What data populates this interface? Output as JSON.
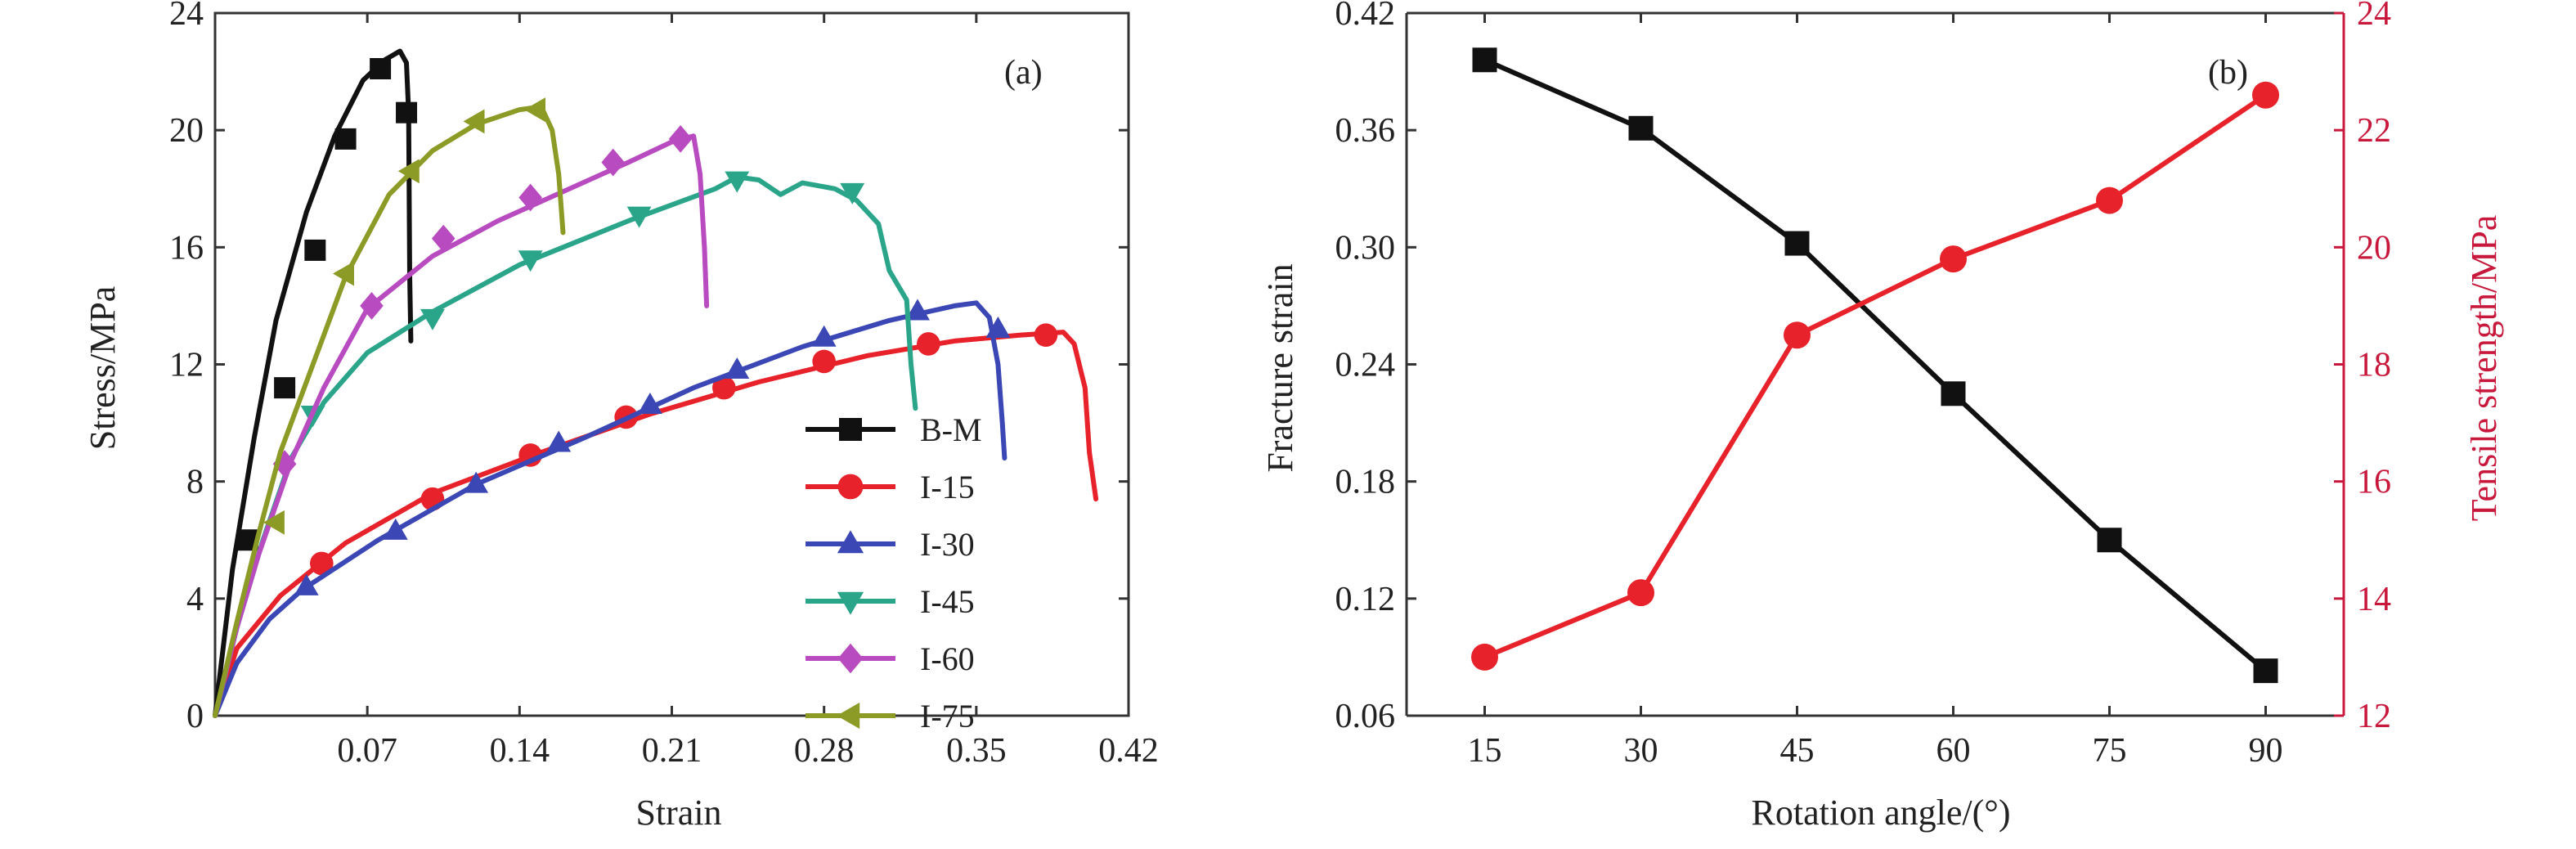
{
  "chart_data": [
    {
      "type": "line",
      "panel_label": "(a)",
      "xlabel": "Strain",
      "ylabel": "Stress/MPa",
      "xlim": [
        0,
        0.42
      ],
      "ylim": [
        0,
        24
      ],
      "xticks": [
        "0.07",
        "0.14",
        "0.21",
        "0.28",
        "0.35",
        "0.42"
      ],
      "xtick_values": [
        0.07,
        0.14,
        0.21,
        0.28,
        0.35,
        0.42
      ],
      "yticks": [
        "0",
        "4",
        "8",
        "12",
        "16",
        "20",
        "24"
      ],
      "ytick_values": [
        0,
        4,
        8,
        12,
        16,
        20,
        24
      ],
      "legend_position": "lower-right",
      "series": [
        {
          "name": "B-M",
          "color": "#111111",
          "marker": "square",
          "curve": [
            [
              0,
              0
            ],
            [
              0.008,
              5.0
            ],
            [
              0.018,
              9.5
            ],
            [
              0.028,
              13.5
            ],
            [
              0.042,
              17.2
            ],
            [
              0.055,
              19.8
            ],
            [
              0.068,
              21.7
            ],
            [
              0.078,
              22.4
            ],
            [
              0.085,
              22.7
            ],
            [
              0.088,
              22.3
            ],
            [
              0.089,
              20.6
            ],
            [
              0.0895,
              15.0
            ],
            [
              0.09,
              12.8
            ]
          ],
          "markers": [
            [
              0.015,
              6.0
            ],
            [
              0.032,
              11.2
            ],
            [
              0.046,
              15.9
            ],
            [
              0.06,
              19.7
            ],
            [
              0.076,
              22.1
            ],
            [
              0.088,
              20.6
            ]
          ]
        },
        {
          "name": "I-15",
          "color": "#e8222a",
          "marker": "circle",
          "curve": [
            [
              0,
              0
            ],
            [
              0.01,
              2.3
            ],
            [
              0.03,
              4.1
            ],
            [
              0.06,
              5.9
            ],
            [
              0.1,
              7.6
            ],
            [
              0.15,
              9.0
            ],
            [
              0.2,
              10.3
            ],
            [
              0.25,
              11.4
            ],
            [
              0.3,
              12.3
            ],
            [
              0.34,
              12.8
            ],
            [
              0.37,
              13.0
            ],
            [
              0.39,
              13.1
            ],
            [
              0.395,
              12.7
            ],
            [
              0.4,
              11.2
            ],
            [
              0.402,
              9.0
            ],
            [
              0.405,
              7.4
            ]
          ],
          "markers": [
            [
              0.049,
              5.2
            ],
            [
              0.1,
              7.4
            ],
            [
              0.145,
              8.9
            ],
            [
              0.189,
              10.2
            ],
            [
              0.234,
              11.2
            ],
            [
              0.28,
              12.1
            ],
            [
              0.328,
              12.7
            ],
            [
              0.382,
              13.0
            ]
          ]
        },
        {
          "name": "I-30",
          "color": "#3a47b5",
          "marker": "triangle-up",
          "curve": [
            [
              0,
              0
            ],
            [
              0.01,
              1.8
            ],
            [
              0.025,
              3.3
            ],
            [
              0.04,
              4.3
            ],
            [
              0.075,
              6.0
            ],
            [
              0.12,
              7.9
            ],
            [
              0.17,
              9.5
            ],
            [
              0.22,
              11.2
            ],
            [
              0.27,
              12.6
            ],
            [
              0.31,
              13.5
            ],
            [
              0.34,
              14.0
            ],
            [
              0.35,
              14.1
            ],
            [
              0.356,
              13.6
            ],
            [
              0.36,
              12.0
            ],
            [
              0.362,
              10.0
            ],
            [
              0.363,
              8.8
            ]
          ],
          "markers": [
            [
              0.042,
              4.4
            ],
            [
              0.083,
              6.3
            ],
            [
              0.12,
              7.9
            ],
            [
              0.158,
              9.3
            ],
            [
              0.2,
              10.6
            ],
            [
              0.24,
              11.8
            ],
            [
              0.28,
              12.9
            ],
            [
              0.323,
              13.8
            ],
            [
              0.36,
              13.2
            ]
          ]
        },
        {
          "name": "I-45",
          "color": "#2aa58a",
          "marker": "triangle-down",
          "curve": [
            [
              0,
              0
            ],
            [
              0.01,
              3.0
            ],
            [
              0.022,
              6.0
            ],
            [
              0.035,
              8.8
            ],
            [
              0.05,
              10.7
            ],
            [
              0.07,
              12.4
            ],
            [
              0.1,
              13.8
            ],
            [
              0.14,
              15.4
            ],
            [
              0.19,
              16.9
            ],
            [
              0.23,
              18.0
            ],
            [
              0.24,
              18.4
            ],
            [
              0.25,
              18.3
            ],
            [
              0.26,
              17.8
            ],
            [
              0.27,
              18.2
            ],
            [
              0.285,
              18.0
            ],
            [
              0.295,
              17.6
            ],
            [
              0.305,
              16.8
            ],
            [
              0.31,
              15.2
            ],
            [
              0.318,
              14.2
            ],
            [
              0.32,
              12.0
            ],
            [
              0.322,
              10.5
            ]
          ],
          "markers": [
            [
              0.045,
              10.3
            ],
            [
              0.1,
              13.6
            ],
            [
              0.145,
              15.6
            ],
            [
              0.195,
              17.1
            ],
            [
              0.24,
              18.3
            ],
            [
              0.293,
              17.9
            ]
          ]
        },
        {
          "name": "I-60",
          "color": "#b84bbf",
          "marker": "diamond",
          "curve": [
            [
              0,
              0
            ],
            [
              0.01,
              3.0
            ],
            [
              0.02,
              5.5
            ],
            [
              0.035,
              8.7
            ],
            [
              0.05,
              11.2
            ],
            [
              0.07,
              13.9
            ],
            [
              0.1,
              15.7
            ],
            [
              0.13,
              16.9
            ],
            [
              0.16,
              17.9
            ],
            [
              0.19,
              18.9
            ],
            [
              0.21,
              19.6
            ],
            [
              0.22,
              19.8
            ],
            [
              0.223,
              18.5
            ],
            [
              0.225,
              16.0
            ],
            [
              0.226,
              14.0
            ]
          ],
          "markers": [
            [
              0.032,
              8.6
            ],
            [
              0.072,
              14.0
            ],
            [
              0.105,
              16.3
            ],
            [
              0.145,
              17.7
            ],
            [
              0.183,
              18.9
            ],
            [
              0.214,
              19.7
            ]
          ]
        },
        {
          "name": "I-75",
          "color": "#8c9a26",
          "marker": "triangle-left",
          "curve": [
            [
              0,
              0
            ],
            [
              0.01,
              3.2
            ],
            [
              0.02,
              6.2
            ],
            [
              0.03,
              9.0
            ],
            [
              0.045,
              12.0
            ],
            [
              0.06,
              15.0
            ],
            [
              0.08,
              17.8
            ],
            [
              0.1,
              19.3
            ],
            [
              0.12,
              20.2
            ],
            [
              0.14,
              20.7
            ],
            [
              0.15,
              20.8
            ],
            [
              0.155,
              20.0
            ],
            [
              0.158,
              18.5
            ],
            [
              0.16,
              16.5
            ]
          ],
          "markers": [
            [
              0.028,
              6.6
            ],
            [
              0.06,
              15.1
            ],
            [
              0.09,
              18.6
            ],
            [
              0.12,
              20.3
            ],
            [
              0.148,
              20.7
            ]
          ]
        }
      ]
    },
    {
      "type": "line",
      "panel_label": "(b)",
      "xlabel": "Rotation angle/(°)",
      "ylabel": "Fracture strain",
      "y2label": "Tensile strength/MPa",
      "categories": [
        15,
        30,
        45,
        60,
        75,
        90
      ],
      "xlim": [
        7.5,
        97.5
      ],
      "xticks": [
        "15",
        "30",
        "45",
        "60",
        "75",
        "90"
      ],
      "ylim": [
        0.06,
        0.42
      ],
      "yticks": [
        "0.06",
        "0.12",
        "0.18",
        "0.24",
        "0.30",
        "0.36",
        "0.42"
      ],
      "ytick_values": [
        0.06,
        0.12,
        0.18,
        0.24,
        0.3,
        0.36,
        0.42
      ],
      "y2lim": [
        12,
        24
      ],
      "y2ticks": [
        "12",
        "14",
        "16",
        "18",
        "20",
        "22",
        "24"
      ],
      "y2tick_values": [
        12,
        14,
        16,
        18,
        20,
        22,
        24
      ],
      "series": [
        {
          "axis": "left",
          "color": "#111111",
          "marker": "square",
          "values": [
            0.396,
            0.361,
            0.302,
            0.225,
            0.15,
            0.083
          ]
        },
        {
          "axis": "right",
          "color": "#e8222a",
          "marker": "circle",
          "values": [
            13.0,
            14.1,
            18.5,
            19.8,
            20.8,
            22.6
          ]
        }
      ],
      "right_axis_color": "#c8183c"
    }
  ]
}
